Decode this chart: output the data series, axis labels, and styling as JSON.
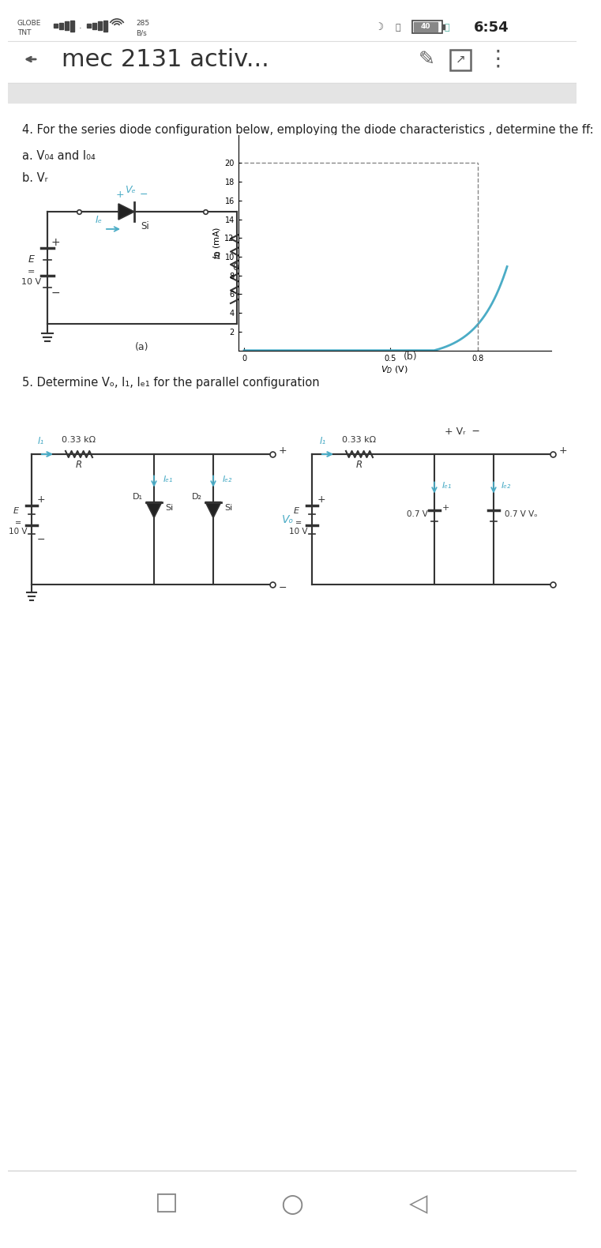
{
  "bg_color": "#f0f0f0",
  "page_bg": "#ffffff",
  "status_left1": "GLOBE",
  "status_left2": "TNT",
  "status_speed": "285",
  "status_speed2": "B/s",
  "status_time": "6:54",
  "battery_pct": "40",
  "nav_title": "mec 2131 activ...",
  "q4_text": "4. For the series diode configuration below, employing the diode characteristics , determine the ff:",
  "q4a": "a. V₀⁄ and I₀⁄",
  "q4b": "b. Vᵣ",
  "q5_text": "5. Determine Vₒ, I₁, Iₑ₁ for the parallel configuration",
  "curve_color": "#4bacc6",
  "lc": "#333333",
  "cc": "#4bacc6",
  "gray_banner": "#e0e0e0",
  "separator": "#cccccc"
}
